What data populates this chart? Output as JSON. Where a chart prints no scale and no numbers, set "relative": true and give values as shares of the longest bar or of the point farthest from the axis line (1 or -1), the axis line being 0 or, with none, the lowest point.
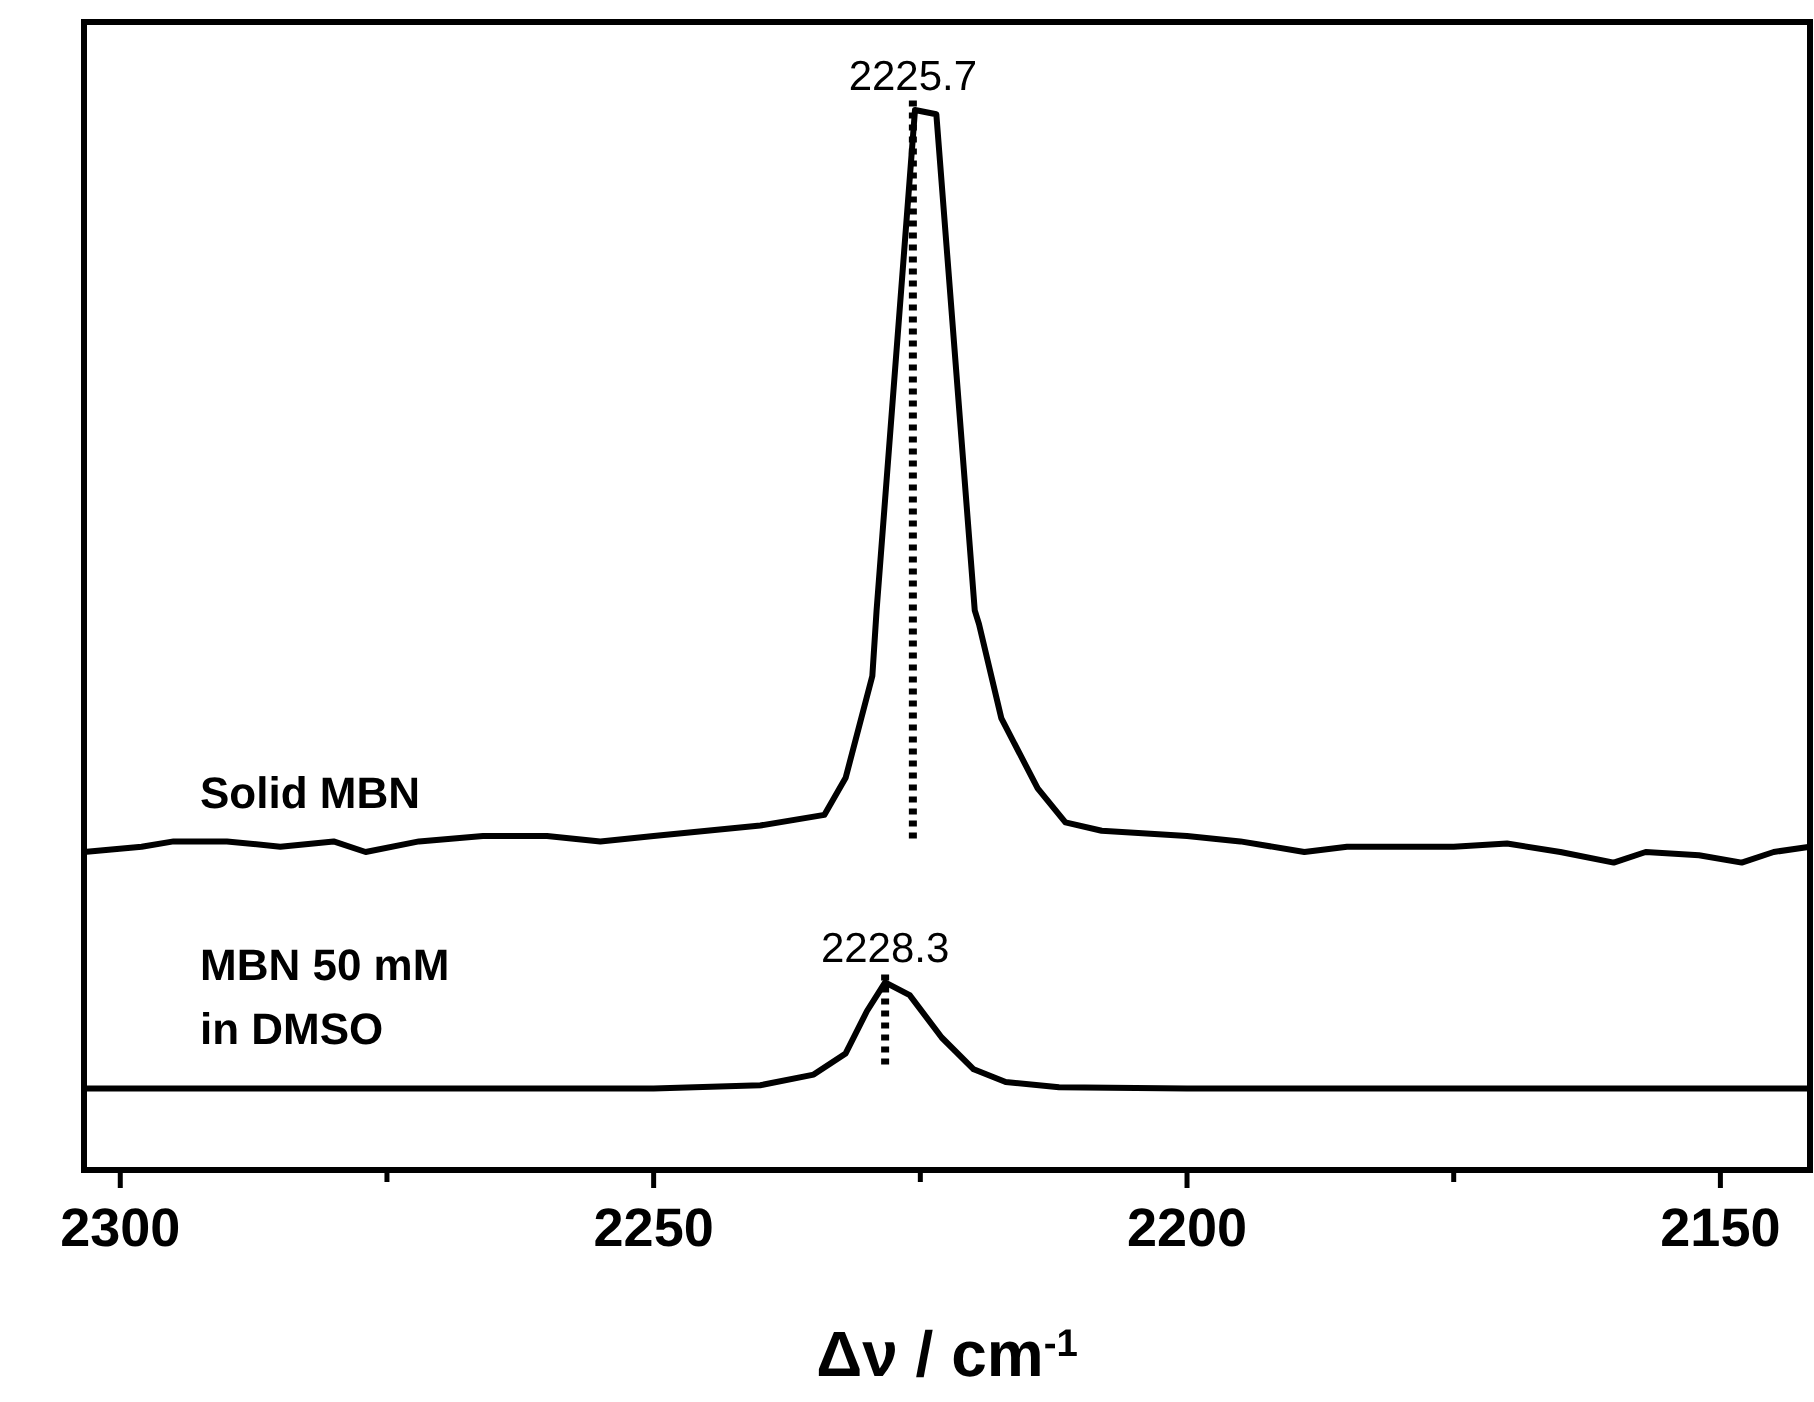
{
  "chart_data": {
    "type": "line",
    "relative": true,
    "xlabel": "Δν / cm$^{-1}$",
    "xlim": [
      2303.4,
      2141.6
    ],
    "xticks": [
      2300,
      {
        "value": 2275,
        "label": null
      },
      2250,
      {
        "value": 2225,
        "label": null
      },
      2200,
      {
        "value": 2175,
        "label": null
      },
      2150
    ],
    "grid": false,
    "tick_labels": "x",
    "marker": "none",
    "line_style": "solid",
    "series": [
      {
        "name": "Solid MBN",
        "color": "#000000",
        "x": [
          2303.4,
          2298,
          2295,
          2290,
          2285,
          2280,
          2277,
          2272,
          2266,
          2260,
          2255,
          2250,
          2245,
          2240,
          2234,
          2232,
          2229.5,
          2229.1,
          2225.5,
          2223.5,
          2219.9,
          2219.5,
          2217.4,
          2214,
          2211.4,
          2208,
          2200,
          2195,
          2189,
          2185,
          2180,
          2175,
          2170,
          2165,
          2160,
          2157,
          2152,
          2148,
          2145,
          2141.6
        ],
        "values": [
          0.3,
          0.305,
          0.31,
          0.31,
          0.305,
          0.31,
          0.3,
          0.31,
          0.315,
          0.315,
          0.31,
          0.315,
          0.32,
          0.325,
          0.335,
          0.37,
          0.466,
          0.528,
          1.0,
          0.996,
          0.528,
          0.515,
          0.426,
          0.36,
          0.328,
          0.32,
          0.315,
          0.31,
          0.3,
          0.305,
          0.305,
          0.305,
          0.308,
          0.3,
          0.29,
          0.3,
          0.297,
          0.29,
          0.3,
          0.305
        ]
      },
      {
        "name": "MBN 50 mM\nin DMSO",
        "color": "#000000",
        "x": [
          2303.4,
          2270,
          2250,
          2240,
          2235,
          2232,
          2230,
          2228.3,
          2226,
          2223,
          2220,
          2217,
          2212,
          2200,
          2170,
          2141.6
        ],
        "values": [
          0.077,
          0.077,
          0.077,
          0.08,
          0.09,
          0.11,
          0.15,
          0.177,
          0.165,
          0.125,
          0.095,
          0.083,
          0.078,
          0.077,
          0.077,
          0.077
        ]
      }
    ],
    "ref_lines": [
      {
        "axis": "x",
        "value": 2225.7,
        "label": "2225.7",
        "line_style": "dotted"
      },
      {
        "axis": "x",
        "value": 2228.3,
        "label": "2228.3",
        "line_style": "dotted"
      }
    ]
  }
}
